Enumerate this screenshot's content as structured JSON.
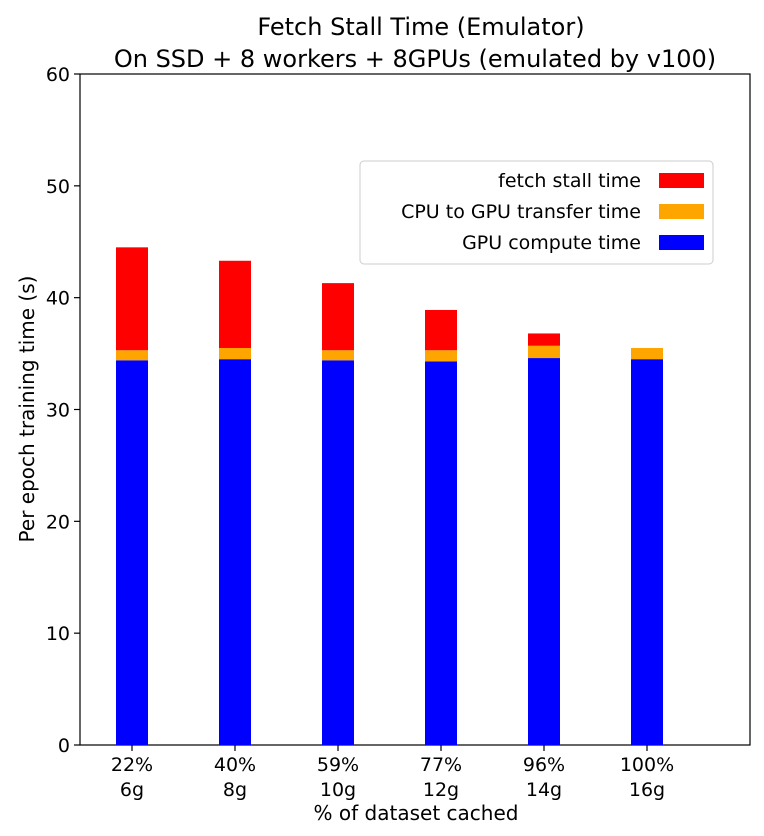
{
  "chart_data": {
    "type": "bar",
    "stacked": true,
    "title": [
      "Fetch Stall Time (Emulator)",
      "On SSD + 8 workers + 8GPUs (emulated by v100)"
    ],
    "xlabel": "% of dataset cached",
    "ylabel": "Per epoch training time (s)",
    "categories": [
      [
        "22%",
        "6g"
      ],
      [
        "40%",
        "8g"
      ],
      [
        "59%",
        "10g"
      ],
      [
        "77%",
        "12g"
      ],
      [
        "96%",
        "14g"
      ],
      [
        "100%",
        "16g"
      ]
    ],
    "ylim": [
      0,
      60
    ],
    "yticks": [
      0,
      10,
      20,
      30,
      40,
      50,
      60
    ],
    "grid": false,
    "legend_position": "upper-right",
    "series": [
      {
        "name": "GPU compute time",
        "color": "#0000ff",
        "values": [
          34.4,
          34.5,
          34.4,
          34.3,
          34.6,
          34.5
        ]
      },
      {
        "name": "CPU to GPU transfer time",
        "color": "#ffa500",
        "values": [
          0.9,
          1.0,
          0.9,
          1.0,
          1.1,
          1.0
        ]
      },
      {
        "name": "fetch stall time",
        "color": "#ff0000",
        "values": [
          9.2,
          7.8,
          6.0,
          3.6,
          1.1,
          0.0
        ]
      }
    ],
    "legend_order": [
      "fetch stall time",
      "CPU to GPU transfer time",
      "GPU compute time"
    ]
  }
}
